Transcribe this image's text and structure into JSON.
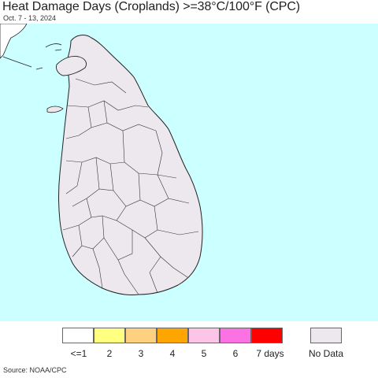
{
  "header": {
    "title": "Heat Damage Days (Croplands) >=38°C/100°F (CPC)",
    "date_range": "Oct. 7 - 13, 2024"
  },
  "map": {
    "ocean_color": "#ccffff",
    "land_color": "#ffffff",
    "no_data_color": "#ede8ee",
    "boundary_color": "#222222"
  },
  "legend": {
    "items": [
      {
        "label": "<=1",
        "color": "#ffffff"
      },
      {
        "label": "2",
        "color": "#ffff80"
      },
      {
        "label": "3",
        "color": "#fdd17f"
      },
      {
        "label": "4",
        "color": "#fea500"
      },
      {
        "label": "5",
        "color": "#fcc5e7"
      },
      {
        "label": "6",
        "color": "#fb72e2"
      },
      {
        "label": "7 days",
        "color": "#ff0000"
      }
    ],
    "no_data": {
      "label": "No Data",
      "color": "#ede8ee"
    }
  },
  "footer": {
    "source": "Source: NOAA/CPC"
  }
}
